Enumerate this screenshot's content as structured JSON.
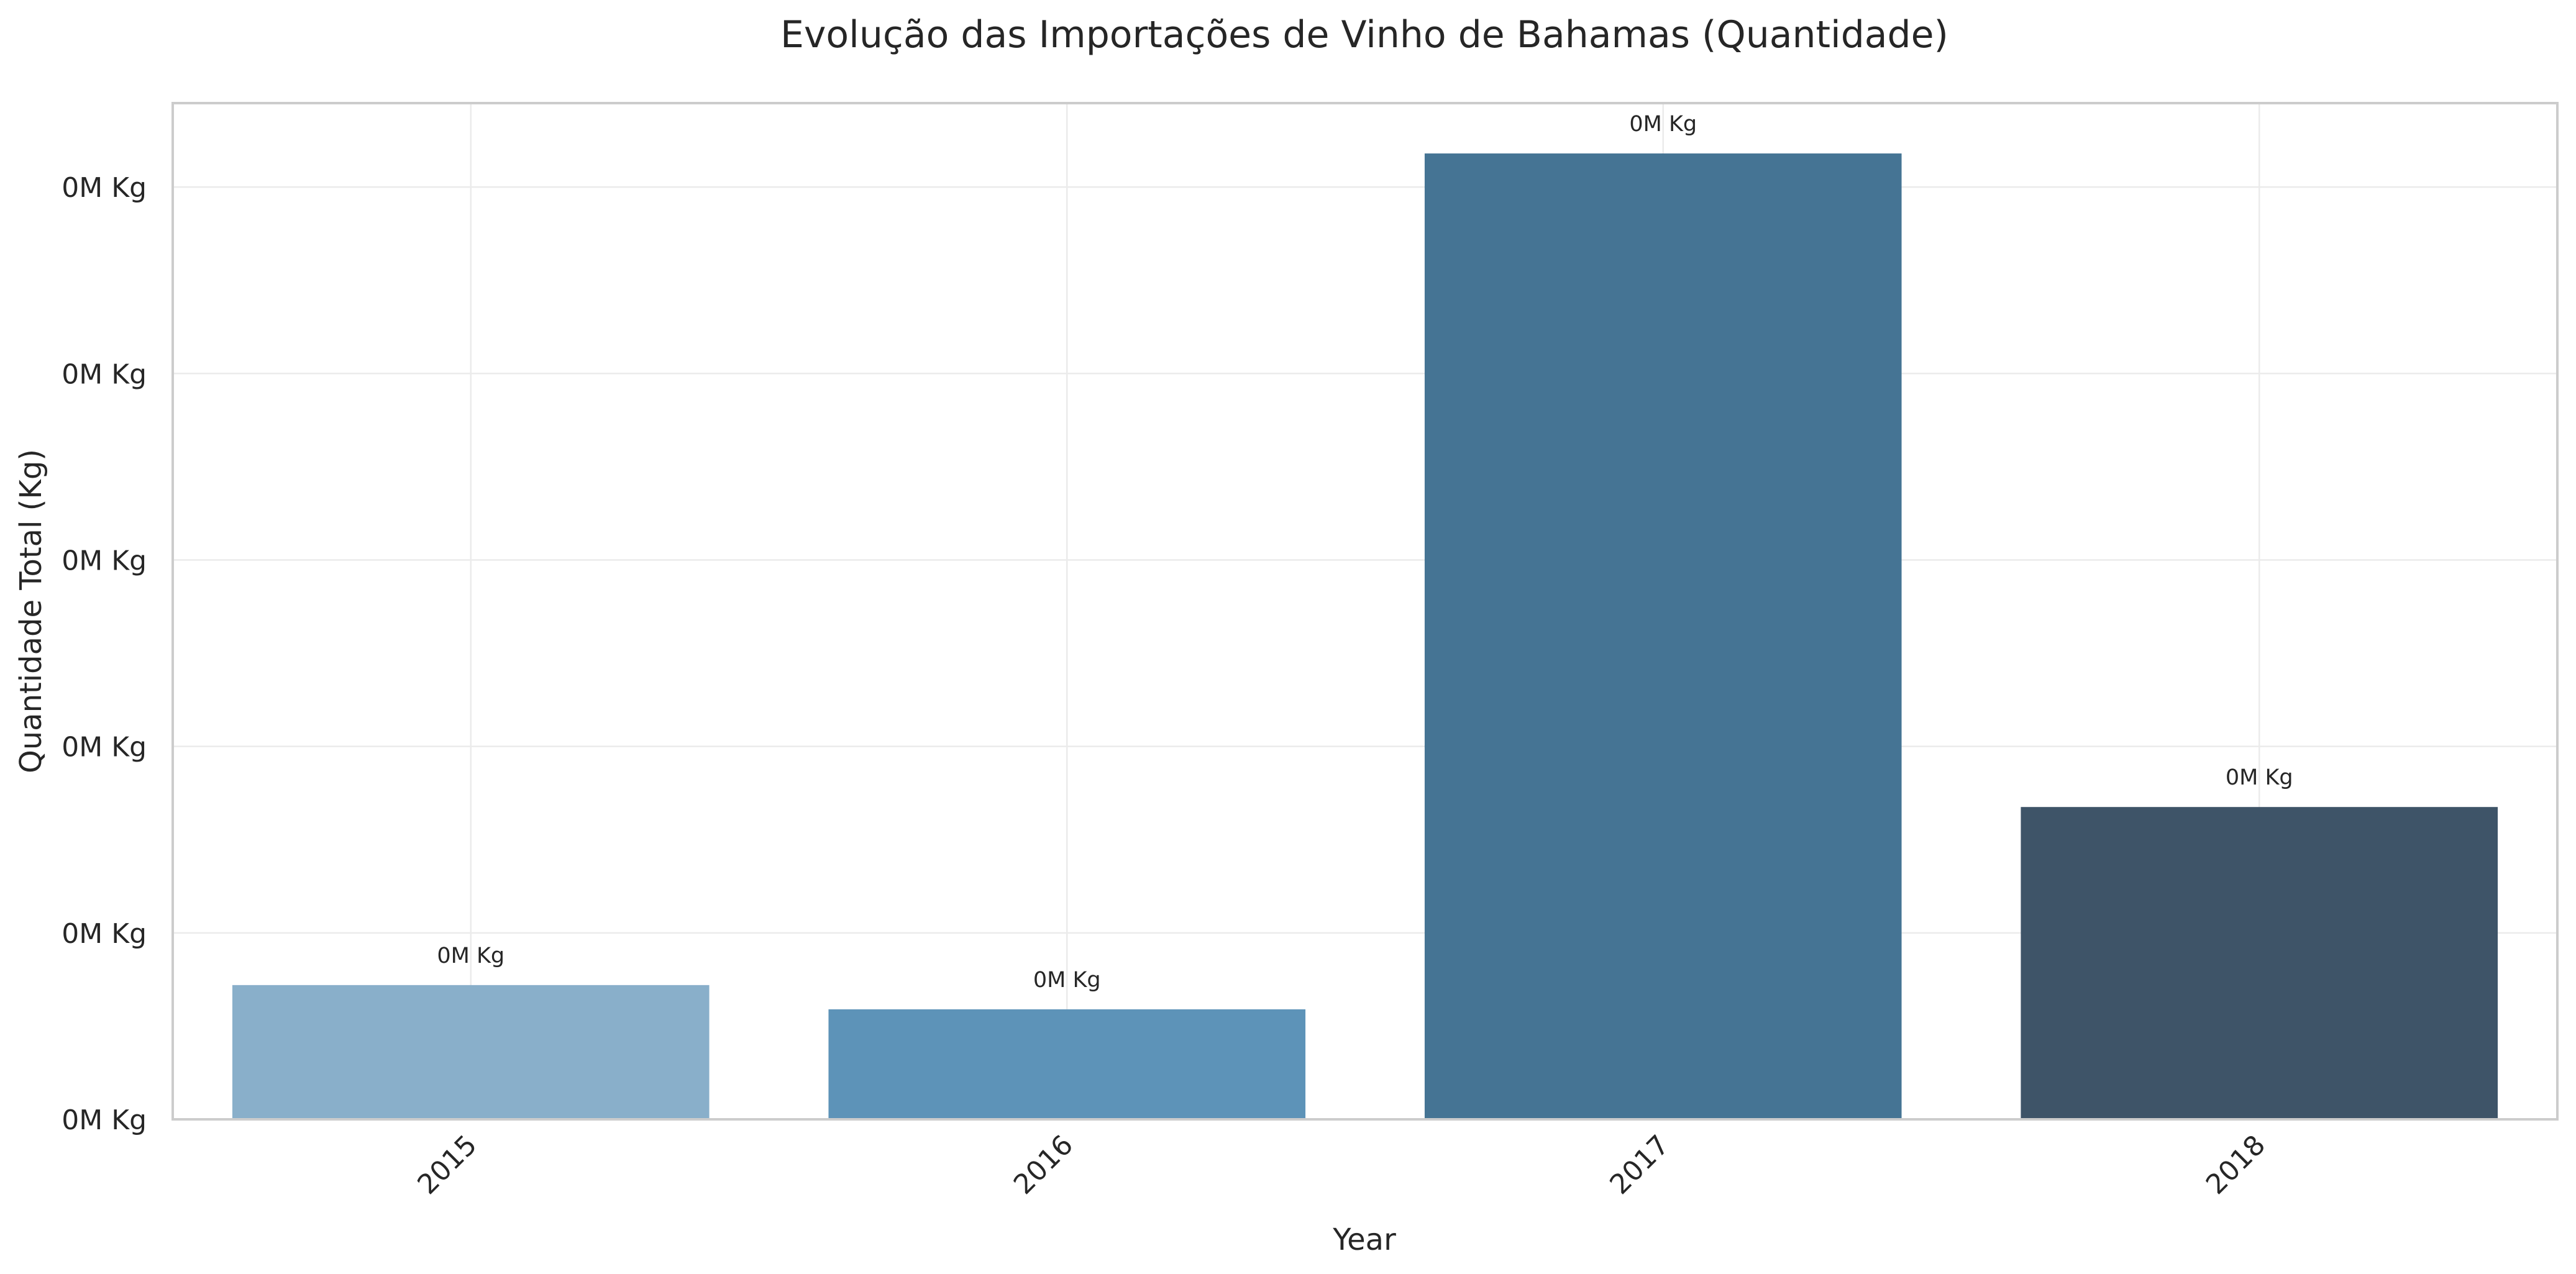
{
  "chart_data": {
    "type": "bar",
    "title": "Evolução das Importações de Vinho de Bahamas (Quantidade)",
    "xlabel": "Year",
    "ylabel": "Quantidade Total (Kg)",
    "categories": [
      "2015",
      "2016",
      "2017",
      "2018"
    ],
    "values": [
      14400,
      11800,
      103600,
      33500
    ],
    "value_labels": [
      "0M Kg",
      "0M Kg",
      "0M Kg",
      "0M Kg"
    ],
    "ylim": [
      0,
      109000
    ],
    "y_ticks": [
      {
        "value": 0,
        "label": "0M Kg"
      },
      {
        "value": 20000,
        "label": "0M Kg"
      },
      {
        "value": 40000,
        "label": "0M Kg"
      },
      {
        "value": 60000,
        "label": "0M Kg"
      },
      {
        "value": 80000,
        "label": "0M Kg"
      },
      {
        "value": 100000,
        "label": "0M Kg"
      }
    ],
    "bar_colors": [
      "#89afca",
      "#5d93b8",
      "#457494",
      "#3e5468"
    ],
    "grid": true,
    "x_tick_rotation_deg": 45
  }
}
